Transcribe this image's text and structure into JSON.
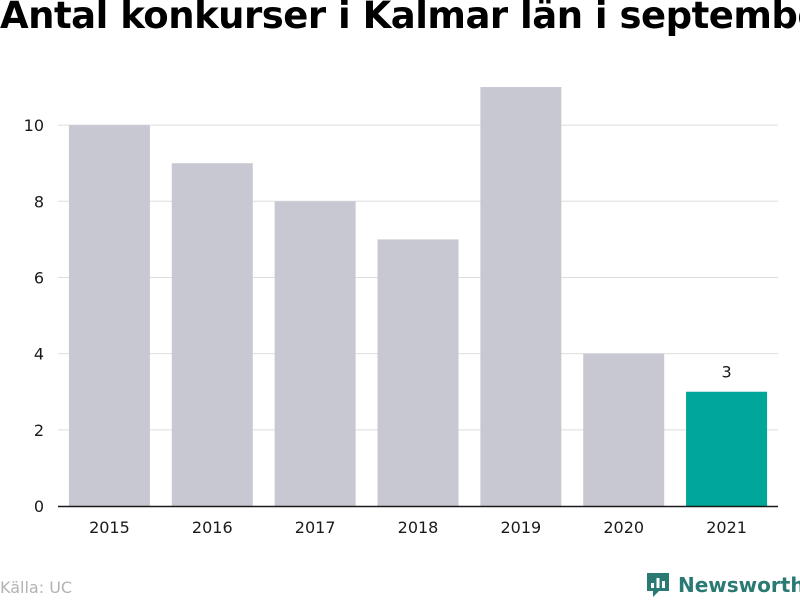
{
  "title": "Antal konkurser i Kalmar län i september",
  "source": "Källa: UC",
  "brand": {
    "name": "Newsworthy",
    "icon": "newsworthy-logo-icon",
    "color": "#2a7a73"
  },
  "colors": {
    "bar": "#c8c8d2",
    "highlight": "#00a699",
    "grid": "#dedede",
    "axis": "#1a1a1a"
  },
  "chart_data": {
    "type": "bar",
    "title": "Antal konkurser i Kalmar län i september",
    "xlabel": "",
    "ylabel": "",
    "categories": [
      "2015",
      "2016",
      "2017",
      "2018",
      "2019",
      "2020",
      "2021"
    ],
    "values": [
      10,
      9,
      8,
      7,
      11,
      4,
      3
    ],
    "highlight_index": 6,
    "data_labels": [
      {
        "index": 6,
        "text": "3"
      }
    ],
    "ylim": [
      0,
      11.5
    ],
    "yticks": [
      0,
      2,
      4,
      6,
      8,
      10
    ],
    "grid": true,
    "legend": "none"
  }
}
